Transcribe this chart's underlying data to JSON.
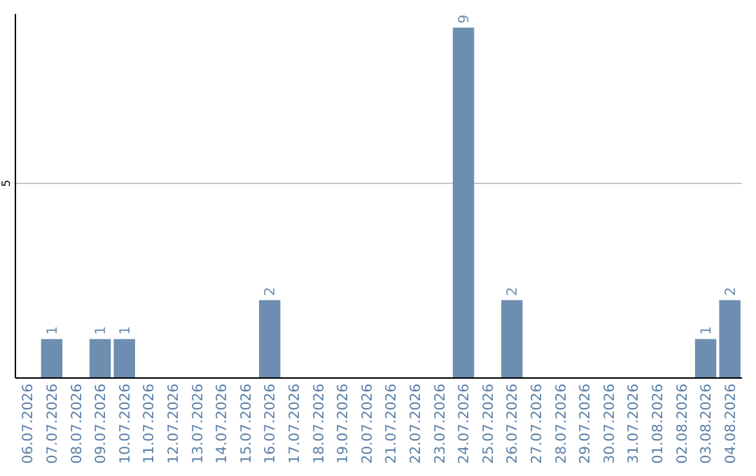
{
  "chart_data": {
    "type": "bar",
    "categories": [
      "06.07.2026",
      "07.07.2026",
      "08.07.2026",
      "09.07.2026",
      "10.07.2026",
      "11.07.2026",
      "12.07.2026",
      "13.07.2026",
      "14.07.2026",
      "15.07.2026",
      "16.07.2026",
      "17.07.2026",
      "18.07.2026",
      "19.07.2026",
      "20.07.2026",
      "21.07.2026",
      "22.07.2026",
      "23.07.2026",
      "24.07.2026",
      "25.07.2026",
      "26.07.2026",
      "27.07.2026",
      "28.07.2026",
      "29.07.2026",
      "30.07.2026",
      "31.07.2026",
      "01.08.2026",
      "02.08.2026",
      "03.08.2026",
      "04.08.2026"
    ],
    "values": [
      0,
      1,
      0,
      1,
      1,
      0,
      0,
      0,
      0,
      0,
      2,
      0,
      0,
      0,
      0,
      0,
      0,
      0,
      9,
      0,
      2,
      0,
      0,
      0,
      0,
      0,
      0,
      0,
      1,
      2
    ],
    "value_labels": [
      null,
      "1",
      null,
      "1",
      "1",
      null,
      null,
      null,
      null,
      null,
      "2",
      null,
      null,
      null,
      null,
      null,
      null,
      null,
      "9",
      null,
      "2",
      null,
      null,
      null,
      null,
      null,
      null,
      null,
      "1",
      "2"
    ],
    "color": "#6d8eb0",
    "ylim": [
      0,
      9.35
    ],
    "yticks": [
      5
    ],
    "grid": "y"
  }
}
